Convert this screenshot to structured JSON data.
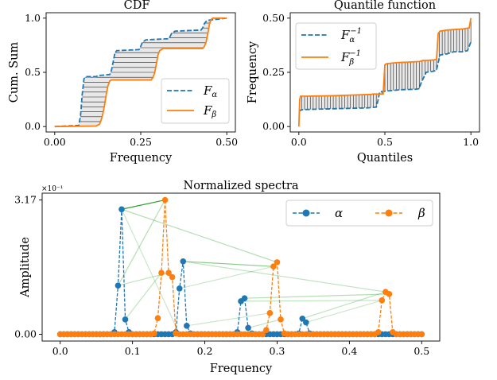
{
  "colors": {
    "alpha": "#1f77b4",
    "beta": "#ff7f0e",
    "fill": "#d9d9d9",
    "match": "#2ca02c"
  },
  "chart_data": [
    {
      "type": "line",
      "title": "CDF",
      "xlabel": "Frequency",
      "ylabel": "Cum. Sum",
      "xlim": [
        -0.025,
        0.525
      ],
      "ylim": [
        -0.05,
        1.05
      ],
      "xticks": [
        "0.00",
        "0.25",
        "0.50"
      ],
      "xtick_values": [
        0,
        0.25,
        0.5
      ],
      "yticks": [
        "0.0",
        "0.5",
        "1.0"
      ],
      "ytick_values": [
        0,
        0.5,
        1
      ],
      "legend": {
        "position": "lower-right",
        "entries": [
          "F_α",
          "F_β"
        ]
      },
      "fill_between": true,
      "series": [
        {
          "name": "F_α",
          "style": "dashed",
          "color": "#1f77b4",
          "x": [
            0,
            0.07,
            0.075,
            0.08,
            0.085,
            0.09,
            0.12,
            0.125,
            0.16,
            0.165,
            0.17,
            0.175,
            0.18,
            0.245,
            0.25,
            0.255,
            0.26,
            0.265,
            0.33,
            0.335,
            0.34,
            0.345,
            0.35,
            0.425,
            0.43,
            0.435,
            0.44,
            0.445,
            0.5
          ],
          "y": [
            0,
            0.01,
            0.1,
            0.3,
            0.44,
            0.46,
            0.46,
            0.47,
            0.48,
            0.52,
            0.6,
            0.68,
            0.7,
            0.71,
            0.74,
            0.78,
            0.79,
            0.8,
            0.81,
            0.83,
            0.86,
            0.87,
            0.88,
            0.89,
            0.91,
            0.95,
            0.97,
            0.98,
            1.0
          ]
        },
        {
          "name": "F_β",
          "style": "solid",
          "color": "#ff7f0e",
          "x": [
            0,
            0.12,
            0.13,
            0.135,
            0.14,
            0.145,
            0.15,
            0.155,
            0.16,
            0.165,
            0.28,
            0.285,
            0.29,
            0.295,
            0.3,
            0.305,
            0.31,
            0.315,
            0.43,
            0.435,
            0.44,
            0.445,
            0.45,
            0.455,
            0.46,
            0.5
          ],
          "y": [
            0,
            0.005,
            0.02,
            0.06,
            0.12,
            0.2,
            0.3,
            0.38,
            0.42,
            0.43,
            0.43,
            0.45,
            0.49,
            0.57,
            0.66,
            0.7,
            0.71,
            0.72,
            0.72,
            0.74,
            0.78,
            0.86,
            0.95,
            0.99,
            1.0,
            1.0
          ]
        }
      ]
    },
    {
      "type": "line",
      "title": "Quantile function",
      "xlabel": "Quantiles",
      "ylabel": "Frequency",
      "xlim": [
        -0.05,
        1.05
      ],
      "ylim": [
        -0.025,
        0.525
      ],
      "xticks": [
        "0.0",
        "0.5",
        "1.0"
      ],
      "xtick_values": [
        0,
        0.5,
        1
      ],
      "yticks": [
        "0.00",
        "0.25",
        "0.50"
      ],
      "ytick_values": [
        0,
        0.25,
        0.5
      ],
      "legend": {
        "position": "upper-left",
        "entries": [
          "F_α^{-1}",
          "F_β^{-1}"
        ]
      },
      "fill_between": true,
      "series": [
        {
          "name": "F_α^{-1}",
          "style": "dashed",
          "color": "#1f77b4",
          "x": [
            0,
            0.005,
            0.01,
            0.02,
            0.1,
            0.2,
            0.3,
            0.4,
            0.45,
            0.46,
            0.47,
            0.5,
            0.54,
            0.6,
            0.68,
            0.7,
            0.71,
            0.74,
            0.78,
            0.79,
            0.8,
            0.82,
            0.86,
            0.88,
            0.9,
            0.95,
            0.98,
            1.0
          ],
          "y": [
            0.07,
            0.072,
            0.075,
            0.078,
            0.08,
            0.082,
            0.084,
            0.086,
            0.09,
            0.12,
            0.16,
            0.163,
            0.166,
            0.17,
            0.172,
            0.175,
            0.2,
            0.25,
            0.255,
            0.257,
            0.26,
            0.33,
            0.335,
            0.34,
            0.345,
            0.345,
            0.35,
            0.39
          ]
        },
        {
          "name": "F_β^{-1}",
          "style": "solid",
          "color": "#ff7f0e",
          "x": [
            0,
            0.005,
            0.01,
            0.05,
            0.2,
            0.3,
            0.42,
            0.43,
            0.45,
            0.49,
            0.5,
            0.51,
            0.57,
            0.66,
            0.7,
            0.71,
            0.72,
            0.74,
            0.78,
            0.8,
            0.81,
            0.82,
            0.86,
            0.95,
            0.99,
            1.0
          ],
          "y": [
            0,
            0.125,
            0.14,
            0.14,
            0.142,
            0.145,
            0.148,
            0.15,
            0.15,
            0.15,
            0.285,
            0.29,
            0.295,
            0.298,
            0.3,
            0.302,
            0.305,
            0.305,
            0.307,
            0.31,
            0.43,
            0.44,
            0.445,
            0.45,
            0.455,
            0.5
          ]
        }
      ]
    },
    {
      "type": "line",
      "title": "Normalized spectra",
      "xlabel": "Frequency",
      "ylabel": "Amplitude",
      "scale_note": "×10⁻¹",
      "xlim": [
        -0.025,
        0.525
      ],
      "ylim": [
        -0.16,
        3.33
      ],
      "xticks": [
        "0.0",
        "0.1",
        "0.2",
        "0.3",
        "0.4",
        "0.5"
      ],
      "xtick_values": [
        0,
        0.1,
        0.2,
        0.3,
        0.4,
        0.5
      ],
      "yticks": [
        "0.00",
        "3.17"
      ],
      "ytick_values": [
        0,
        3.17
      ],
      "legend": {
        "position": "upper-right",
        "entries": [
          "α",
          "β"
        ]
      },
      "series": [
        {
          "name": "α",
          "style": "dashed-markers",
          "color": "#1f77b4",
          "x": [
            0.075,
            0.08,
            0.085,
            0.09,
            0.095,
            0.16,
            0.165,
            0.17,
            0.175,
            0.18,
            0.245,
            0.25,
            0.255,
            0.26,
            0.265,
            0.33,
            0.335,
            0.34,
            0.345,
            0.35,
            0.425,
            0.43,
            0.435,
            0.44,
            0.445
          ],
          "y": [
            0.05,
            1.15,
            2.95,
            0.35,
            0.05,
            0.05,
            1.08,
            1.72,
            0.2,
            0.02,
            0.05,
            0.78,
            0.85,
            0.15,
            0.02,
            0.02,
            0.37,
            0.28,
            0.02,
            0.0,
            0.0,
            0.0,
            0.0,
            0.0,
            0.0
          ]
        },
        {
          "name": "β",
          "style": "dashed-markers",
          "color": "#ff7f0e",
          "x": [
            0.13,
            0.135,
            0.14,
            0.145,
            0.15,
            0.155,
            0.16,
            0.165,
            0.285,
            0.29,
            0.295,
            0.3,
            0.305,
            0.31,
            0.44,
            0.445,
            0.45,
            0.455,
            0.46,
            0.465
          ],
          "y": [
            0.02,
            0.38,
            1.45,
            3.17,
            1.45,
            1.35,
            0.02,
            0.0,
            0.1,
            0.5,
            1.6,
            1.7,
            0.35,
            0.02,
            0.05,
            0.8,
            1.0,
            0.95,
            0.05,
            0.0
          ]
        }
      ],
      "matchings": [
        {
          "from": [
            0.085,
            2.95
          ],
          "to": [
            0.145,
            3.17
          ],
          "opacity": 1.0
        },
        {
          "from": [
            0.085,
            2.95
          ],
          "to": [
            0.3,
            1.7
          ],
          "opacity": 0.35
        },
        {
          "from": [
            0.085,
            2.95
          ],
          "to": [
            0.165,
            0.0
          ],
          "opacity": 0.25
        },
        {
          "from": [
            0.17,
            1.72
          ],
          "to": [
            0.295,
            1.6
          ],
          "opacity": 0.55
        },
        {
          "from": [
            0.17,
            1.72
          ],
          "to": [
            0.45,
            1.0
          ],
          "opacity": 0.3
        },
        {
          "from": [
            0.08,
            1.15
          ],
          "to": [
            0.145,
            3.17
          ],
          "opacity": 0.35
        },
        {
          "from": [
            0.08,
            1.15
          ],
          "to": [
            0.15,
            1.45
          ],
          "opacity": 0.3
        },
        {
          "from": [
            0.165,
            1.08
          ],
          "to": [
            0.295,
            1.6
          ],
          "opacity": 0.25
        },
        {
          "from": [
            0.255,
            0.85
          ],
          "to": [
            0.455,
            0.95
          ],
          "opacity": 0.35
        },
        {
          "from": [
            0.25,
            0.78
          ],
          "to": [
            0.445,
            0.8
          ],
          "opacity": 0.3
        },
        {
          "from": [
            0.335,
            0.37
          ],
          "to": [
            0.45,
            1.0
          ],
          "opacity": 0.3
        },
        {
          "from": [
            0.34,
            0.28
          ],
          "to": [
            0.445,
            0.8
          ],
          "opacity": 0.25
        },
        {
          "from": [
            0.09,
            0.35
          ],
          "to": [
            0.14,
            1.45
          ],
          "opacity": 0.3
        },
        {
          "from": [
            0.175,
            0.2
          ],
          "to": [
            0.29,
            0.5
          ],
          "opacity": 0.25
        },
        {
          "from": [
            0.26,
            0.15
          ],
          "to": [
            0.305,
            0.35
          ],
          "opacity": 0.3
        }
      ]
    }
  ]
}
